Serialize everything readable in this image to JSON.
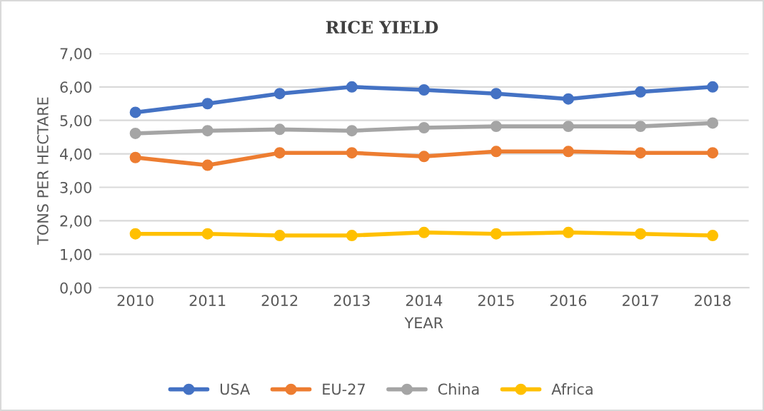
{
  "chart_data": {
    "type": "line",
    "title": "RICE YIELD",
    "xlabel": "YEAR",
    "ylabel": "TONS PER HECTARE",
    "categories": [
      "2010",
      "2011",
      "2012",
      "2013",
      "2014",
      "2015",
      "2016",
      "2017",
      "2018"
    ],
    "series": [
      {
        "name": "USA",
        "color": "#4472c4",
        "values": [
          5.24,
          5.5,
          5.8,
          6.0,
          5.91,
          5.8,
          5.64,
          5.85,
          6.0
        ]
      },
      {
        "name": "EU-27",
        "color": "#ed7d31",
        "values": [
          3.89,
          3.66,
          4.03,
          4.03,
          3.92,
          4.07,
          4.07,
          4.03,
          4.03
        ]
      },
      {
        "name": "China",
        "color": "#a5a5a5",
        "values": [
          4.61,
          4.69,
          4.73,
          4.69,
          4.78,
          4.82,
          4.82,
          4.82,
          4.92
        ]
      },
      {
        "name": "Africa",
        "color": "#ffc000",
        "values": [
          1.61,
          1.61,
          1.56,
          1.56,
          1.65,
          1.61,
          1.65,
          1.61,
          1.56
        ]
      }
    ],
    "ylim": [
      0,
      7
    ],
    "yticks": [
      {
        "value": 0,
        "label": "0,00"
      },
      {
        "value": 1,
        "label": "1,00"
      },
      {
        "value": 2,
        "label": "2,00"
      },
      {
        "value": 3,
        "label": "3,00"
      },
      {
        "value": 4,
        "label": "4,00"
      },
      {
        "value": 5,
        "label": "5,00"
      },
      {
        "value": 6,
        "label": "6,00"
      },
      {
        "value": 7,
        "label": "7,00"
      }
    ],
    "grid": "y",
    "legend": "bottom",
    "marker": "circle",
    "line_style": "solid"
  }
}
